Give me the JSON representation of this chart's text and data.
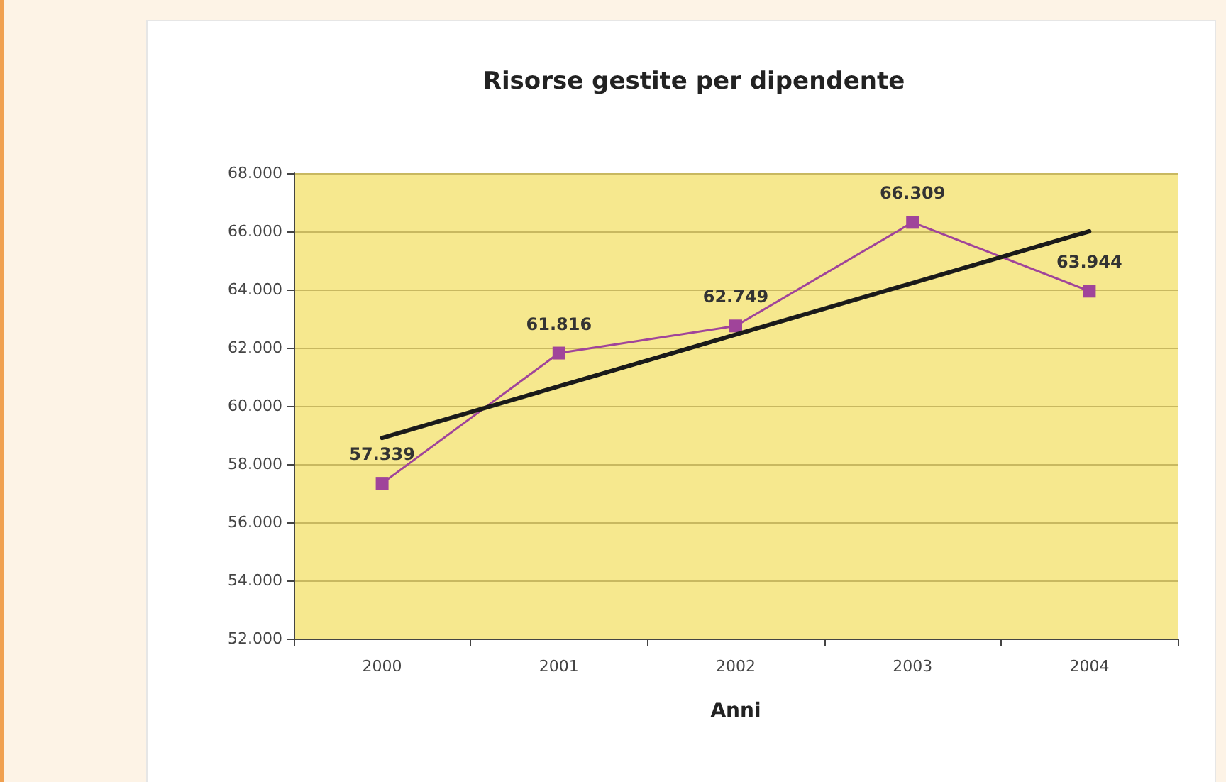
{
  "chart_data": {
    "type": "line",
    "title": "Risorse gestite per dipendente",
    "xlabel": "Anni",
    "categories": [
      "2000",
      "2001",
      "2002",
      "2003",
      "2004"
    ],
    "series": [
      {
        "color": "#a0449a",
        "values": [
          57339,
          61816,
          62749,
          66309,
          63944
        ],
        "value_labels": [
          "57.339",
          "61.816",
          "62.749",
          "66.309",
          "63.944"
        ],
        "marker": "square"
      },
      {
        "type": "line",
        "color": "#1a1a1a",
        "values": [
          58900,
          null,
          null,
          null,
          66000
        ],
        "marker": "none"
      }
    ],
    "ylim": [
      52000,
      68000
    ],
    "yticks": [
      {
        "value": 52000,
        "label": "52.000"
      },
      {
        "value": 54000,
        "label": "54.000"
      },
      {
        "value": 56000,
        "label": "56.000"
      },
      {
        "value": 58000,
        "label": "58.000"
      },
      {
        "value": 60000,
        "label": "60.000"
      },
      {
        "value": 62000,
        "label": "62.000"
      },
      {
        "value": 64000,
        "label": "64.000"
      },
      {
        "value": 66000,
        "label": "66.000"
      },
      {
        "value": 68000,
        "label": "68.000"
      }
    ],
    "grid": "y"
  }
}
